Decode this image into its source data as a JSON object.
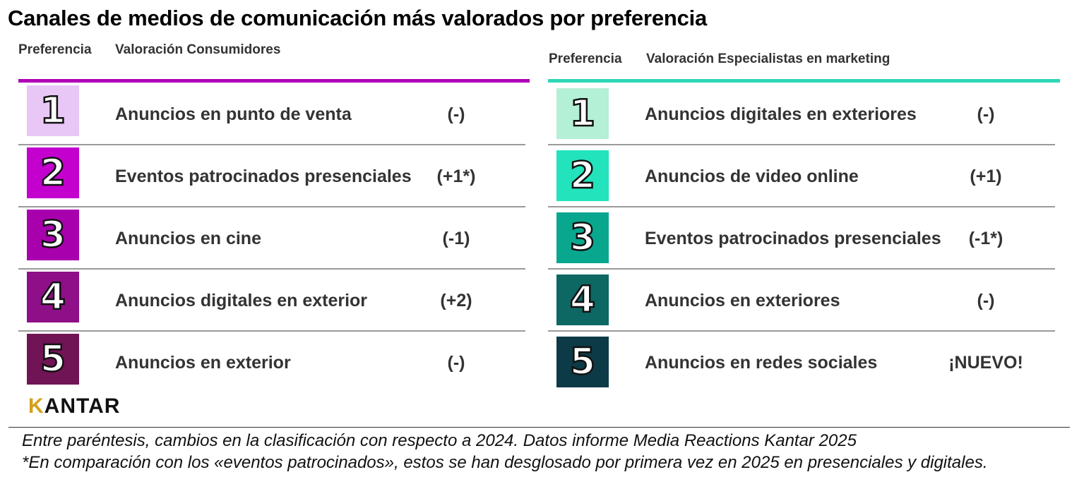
{
  "title": "Canales de medios de comunicación más valorados por preferencia",
  "consumers": {
    "header_pref": "Preferencia",
    "header_val": "Valoración Consumidores",
    "accent": "#b000b8",
    "rows": [
      {
        "rank": "1",
        "label": "Anuncios en punto de venta",
        "change": "(-)",
        "color": "#e8c6f5"
      },
      {
        "rank": "2",
        "label": "Eventos patrocinados presenciales",
        "change": "(+1*)",
        "color": "#c400cf"
      },
      {
        "rank": "3",
        "label": "Anuncios en cine",
        "change": "(-1)",
        "color": "#a800ad"
      },
      {
        "rank": "4",
        "label": "Anuncios digitales en exterior",
        "change": "(+2)",
        "color": "#8e0f88"
      },
      {
        "rank": "5",
        "label": "Anuncios en exterior",
        "change": "(-)",
        "color": "#701456"
      }
    ]
  },
  "marketers": {
    "header_pref": "Preferencia",
    "header_val": "Valoración Especialistas en marketing",
    "accent": "#2fd6b8",
    "rows": [
      {
        "rank": "1",
        "label": "Anuncios digitales en exteriores",
        "change": "(-)",
        "color": "#b3f0d6"
      },
      {
        "rank": "2",
        "label": "Anuncios de video online",
        "change": "(+1)",
        "color": "#22e3bb"
      },
      {
        "rank": "3",
        "label": "Eventos patrocinados presenciales",
        "change": "(-1*)",
        "color": "#0aa78f"
      },
      {
        "rank": "4",
        "label": "Anuncios en exteriores",
        "change": "(-)",
        "color": "#0d6763"
      },
      {
        "rank": "5",
        "label": "Anuncios en redes sociales",
        "change": "¡NUEVO!",
        "color": "#0c3a46"
      }
    ]
  },
  "logo": {
    "brand": "KANTAR"
  },
  "footnotes": [
    "Entre paréntesis, cambios en la clasificación con respecto a 2024. Datos informe Media Reactions Kantar 2025",
    "*En comparación con los «eventos patrocinados», estos se han desglosado por primera vez en 2025 en presenciales y digitales."
  ]
}
